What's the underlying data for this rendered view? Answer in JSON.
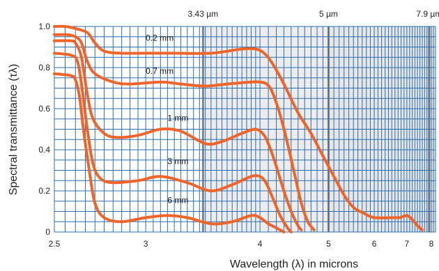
{
  "chart_data": {
    "type": "line",
    "xlabel": "Wavelength (λ) in microns",
    "ylabel": "Spectral transmittance (τλ)",
    "xlim": [
      2.5,
      8.2
    ],
    "ylim": [
      0,
      1.0
    ],
    "x_scale": "reciprocal",
    "x_ticks": [
      {
        "value": 2.5,
        "label": "2.5"
      },
      {
        "value": 3,
        "label": "3"
      },
      {
        "value": 4,
        "label": "4"
      },
      {
        "value": 5,
        "label": "5"
      },
      {
        "value": 6,
        "label": "6"
      },
      {
        "value": 7,
        "label": "7"
      },
      {
        "value": 8,
        "label": "8"
      }
    ],
    "y_ticks": [
      {
        "value": 0,
        "label": "0"
      },
      {
        "value": 0.2,
        "label": "0.2"
      },
      {
        "value": 0.4,
        "label": "0.4"
      },
      {
        "value": 0.6,
        "label": "0.6"
      },
      {
        "value": 0.8,
        "label": "0.8"
      },
      {
        "value": 1.0,
        "label": "1.0"
      }
    ],
    "grid": true,
    "grid_color": "#2a6fb0",
    "line_color": "#f0642a",
    "shading_color": "#dcdcdc",
    "markers": [
      {
        "x": 3.43,
        "label": "3.43 µm"
      },
      {
        "x": 5,
        "label": "5 µm"
      },
      {
        "x": 7.9,
        "label": "7.9 µm"
      }
    ],
    "series": [
      {
        "name": "0.2 mm",
        "label_at": [
          3.0,
          0.93
        ],
        "points": [
          [
            2.5,
            1.0
          ],
          [
            2.55,
            1.0
          ],
          [
            2.6,
            0.99
          ],
          [
            2.66,
            0.97
          ],
          [
            2.7,
            0.92
          ],
          [
            2.75,
            0.88
          ],
          [
            2.85,
            0.87
          ],
          [
            3.0,
            0.87
          ],
          [
            3.2,
            0.87
          ],
          [
            3.5,
            0.87
          ],
          [
            3.8,
            0.89
          ],
          [
            3.95,
            0.89
          ],
          [
            4.05,
            0.87
          ],
          [
            4.15,
            0.82
          ],
          [
            4.3,
            0.72
          ],
          [
            4.5,
            0.58
          ],
          [
            4.7,
            0.48
          ],
          [
            4.9,
            0.37
          ],
          [
            5.1,
            0.27
          ],
          [
            5.3,
            0.18
          ],
          [
            5.5,
            0.12
          ],
          [
            5.75,
            0.09
          ],
          [
            6.0,
            0.07
          ],
          [
            6.5,
            0.07
          ],
          [
            6.75,
            0.07
          ],
          [
            7.0,
            0.08
          ],
          [
            7.2,
            0.06
          ],
          [
            7.4,
            0.03
          ],
          [
            7.6,
            0.01
          ]
        ]
      },
      {
        "name": "0.7 mm",
        "label_at": [
          3.0,
          0.77
        ],
        "points": [
          [
            2.5,
            0.96
          ],
          [
            2.56,
            0.96
          ],
          [
            2.6,
            0.95
          ],
          [
            2.63,
            0.92
          ],
          [
            2.66,
            0.83
          ],
          [
            2.7,
            0.77
          ],
          [
            2.8,
            0.73
          ],
          [
            2.9,
            0.72
          ],
          [
            3.1,
            0.73
          ],
          [
            3.25,
            0.72
          ],
          [
            3.45,
            0.71
          ],
          [
            3.65,
            0.72
          ],
          [
            3.9,
            0.73
          ],
          [
            4.0,
            0.73
          ],
          [
            4.08,
            0.72
          ],
          [
            4.15,
            0.68
          ],
          [
            4.25,
            0.57
          ],
          [
            4.35,
            0.43
          ],
          [
            4.45,
            0.28
          ],
          [
            4.55,
            0.14
          ],
          [
            4.65,
            0.05
          ],
          [
            4.75,
            0.01
          ]
        ]
      },
      {
        "name": "1 mm",
        "label_at": [
          3.15,
          0.54
        ],
        "points": [
          [
            2.5,
            0.93
          ],
          [
            2.58,
            0.93
          ],
          [
            2.6,
            0.92
          ],
          [
            2.63,
            0.85
          ],
          [
            2.66,
            0.67
          ],
          [
            2.69,
            0.55
          ],
          [
            2.75,
            0.48
          ],
          [
            2.82,
            0.46
          ],
          [
            2.95,
            0.47
          ],
          [
            3.1,
            0.5
          ],
          [
            3.25,
            0.49
          ],
          [
            3.45,
            0.43
          ],
          [
            3.6,
            0.44
          ],
          [
            3.8,
            0.48
          ],
          [
            3.95,
            0.5
          ],
          [
            4.05,
            0.47
          ],
          [
            4.12,
            0.41
          ],
          [
            4.2,
            0.32
          ],
          [
            4.3,
            0.2
          ],
          [
            4.4,
            0.1
          ],
          [
            4.5,
            0.03
          ],
          [
            4.55,
            0.01
          ]
        ]
      },
      {
        "name": "3 mm",
        "label_at": [
          3.15,
          0.33
        ],
        "points": [
          [
            2.5,
            0.87
          ],
          [
            2.58,
            0.86
          ],
          [
            2.61,
            0.83
          ],
          [
            2.63,
            0.72
          ],
          [
            2.66,
            0.5
          ],
          [
            2.69,
            0.33
          ],
          [
            2.73,
            0.26
          ],
          [
            2.8,
            0.24
          ],
          [
            2.95,
            0.25
          ],
          [
            3.1,
            0.27
          ],
          [
            3.3,
            0.24
          ],
          [
            3.5,
            0.2
          ],
          [
            3.7,
            0.23
          ],
          [
            3.9,
            0.27
          ],
          [
            4.0,
            0.27
          ],
          [
            4.07,
            0.24
          ],
          [
            4.15,
            0.17
          ],
          [
            4.25,
            0.08
          ],
          [
            4.35,
            0.02
          ],
          [
            4.4,
            0.0
          ]
        ]
      },
      {
        "name": "6 mm",
        "label_at": [
          3.15,
          0.14
        ],
        "points": [
          [
            2.5,
            0.77
          ],
          [
            2.58,
            0.76
          ],
          [
            2.6,
            0.74
          ],
          [
            2.62,
            0.66
          ],
          [
            2.64,
            0.5
          ],
          [
            2.67,
            0.3
          ],
          [
            2.7,
            0.14
          ],
          [
            2.75,
            0.07
          ],
          [
            2.85,
            0.05
          ],
          [
            3.0,
            0.07
          ],
          [
            3.15,
            0.08
          ],
          [
            3.3,
            0.07
          ],
          [
            3.5,
            0.04
          ],
          [
            3.7,
            0.05
          ],
          [
            3.9,
            0.08
          ],
          [
            4.0,
            0.07
          ],
          [
            4.1,
            0.04
          ],
          [
            4.2,
            0.02
          ],
          [
            4.3,
            0.0
          ]
        ]
      }
    ]
  }
}
